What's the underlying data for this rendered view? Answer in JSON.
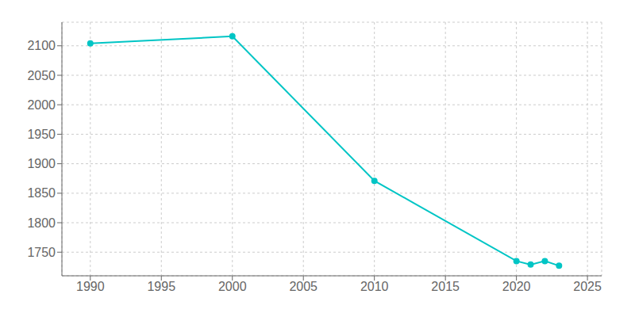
{
  "chart_data": {
    "type": "line",
    "x": [
      1990,
      2000,
      2010,
      2020,
      2021,
      2022,
      2023
    ],
    "values": [
      2104,
      2116,
      1871,
      1735,
      1729,
      1735,
      1727
    ],
    "color": "#00C5C5",
    "marker": "circle",
    "xlim": [
      1988,
      2026
    ],
    "ylim": [
      1710,
      2140
    ],
    "xticks": [
      1990,
      1995,
      2000,
      2005,
      2010,
      2015,
      2020,
      2025
    ],
    "yticks": [
      1750,
      1800,
      1850,
      1900,
      1950,
      2000,
      2050,
      2100
    ],
    "grid": true
  }
}
